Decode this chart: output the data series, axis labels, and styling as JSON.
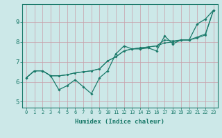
{
  "xlabel": "Humidex (Indice chaleur)",
  "ylabel": "",
  "xlim": [
    -0.5,
    23.5
  ],
  "ylim": [
    4.7,
    9.9
  ],
  "yticks": [
    5,
    6,
    7,
    8,
    9
  ],
  "xticks": [
    0,
    1,
    2,
    3,
    4,
    5,
    6,
    7,
    8,
    9,
    10,
    11,
    12,
    13,
    14,
    15,
    16,
    17,
    18,
    19,
    20,
    21,
    22,
    23
  ],
  "bg_color": "#cce8e8",
  "grid_color": "#c8a0aa",
  "line_color": "#1a7a6a",
  "x": [
    0,
    1,
    2,
    3,
    4,
    5,
    6,
    7,
    8,
    9,
    10,
    11,
    12,
    13,
    14,
    15,
    16,
    17,
    18,
    19,
    20,
    21,
    22,
    23
  ],
  "line1": [
    6.2,
    6.55,
    6.55,
    6.3,
    5.6,
    5.8,
    6.1,
    5.75,
    5.4,
    6.2,
    6.55,
    7.4,
    7.8,
    7.65,
    7.65,
    7.7,
    7.55,
    8.3,
    7.9,
    8.1,
    8.1,
    8.9,
    9.15,
    9.6
  ],
  "line2": [
    6.2,
    6.55,
    6.55,
    6.3,
    6.3,
    6.35,
    6.45,
    6.5,
    6.55,
    6.65,
    7.05,
    7.25,
    7.55,
    7.65,
    7.7,
    7.75,
    7.8,
    7.95,
    8.0,
    8.1,
    8.1,
    8.2,
    8.35,
    9.6
  ],
  "line3": [
    6.2,
    6.55,
    6.55,
    6.3,
    6.3,
    6.35,
    6.45,
    6.5,
    6.55,
    6.65,
    7.05,
    7.25,
    7.55,
    7.65,
    7.7,
    7.75,
    7.8,
    8.1,
    8.05,
    8.1,
    8.1,
    8.25,
    8.4,
    9.6
  ]
}
